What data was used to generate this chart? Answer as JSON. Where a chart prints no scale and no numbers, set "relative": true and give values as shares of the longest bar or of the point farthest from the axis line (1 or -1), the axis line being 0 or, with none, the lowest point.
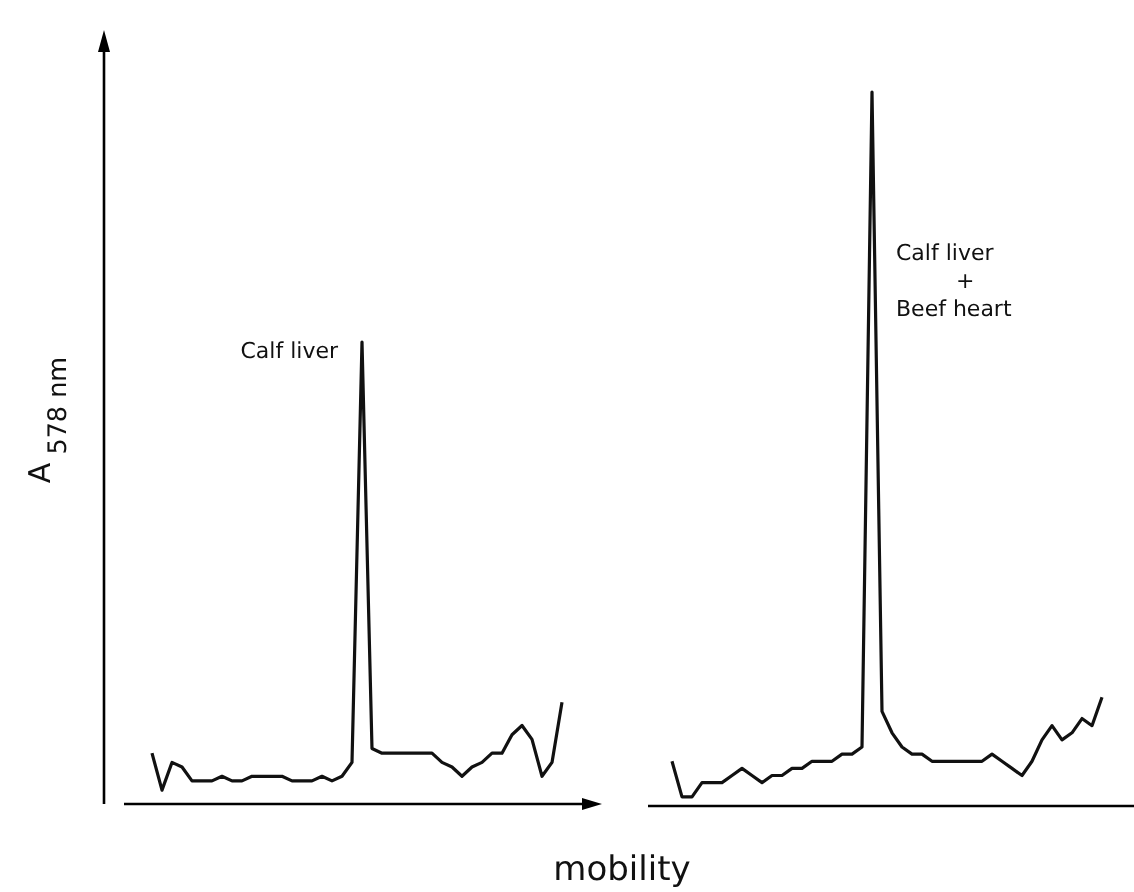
{
  "chart_data": [
    {
      "type": "line",
      "relative": true,
      "xlabel": "mobility",
      "ylabel": "A$_{578 nm}$",
      "line_style": "solid",
      "categories": [
        null,
        null,
        null,
        null,
        null,
        null,
        null,
        null,
        null,
        null,
        null,
        null,
        null,
        null,
        null,
        null,
        null,
        null,
        null,
        null,
        null,
        null,
        null,
        null,
        null,
        null,
        null,
        null,
        null,
        null,
        null,
        null,
        null,
        null,
        null,
        null,
        null,
        null,
        null,
        null,
        null,
        null
      ],
      "series": [
        {
          "name": "Calf liver",
          "color": "#111111",
          "values": [
            0.11,
            0.03,
            0.09,
            0.08,
            0.05,
            0.05,
            0.05,
            0.06,
            0.05,
            0.05,
            0.06,
            0.06,
            0.06,
            0.06,
            0.05,
            0.05,
            0.05,
            0.06,
            0.05,
            0.06,
            0.09,
            1,
            0.12,
            0.11,
            0.11,
            0.11,
            0.11,
            0.11,
            0.11,
            0.09,
            0.08,
            0.06,
            0.08,
            0.09,
            0.11,
            0.11,
            0.15,
            0.17,
            0.14,
            0.06,
            0.09,
            0.22
          ]
        }
      ]
    },
    {
      "type": "line",
      "relative": true,
      "line_style": "solid",
      "categories": [
        null,
        null,
        null,
        null,
        null,
        null,
        null,
        null,
        null,
        null,
        null,
        null,
        null,
        null,
        null,
        null,
        null,
        null,
        null,
        null,
        null,
        null,
        null,
        null,
        null,
        null,
        null,
        null,
        null,
        null,
        null,
        null,
        null,
        null,
        null,
        null,
        null,
        null,
        null,
        null,
        null,
        null,
        null,
        null
      ],
      "series": [
        {
          "name": "Calf liver\n+\nBeef heart",
          "color": "#111111",
          "values": [
            0.06,
            0.01,
            0.01,
            0.03,
            0.03,
            0.03,
            0.04,
            0.05,
            0.04,
            0.03,
            0.04,
            0.04,
            0.05,
            0.05,
            0.06,
            0.06,
            0.06,
            0.07,
            0.07,
            0.08,
            1,
            0.13,
            0.1,
            0.08,
            0.07,
            0.07,
            0.06,
            0.06,
            0.06,
            0.06,
            0.06,
            0.06,
            0.07,
            0.06,
            0.05,
            0.04,
            0.06,
            0.09,
            0.11,
            0.09,
            0.1,
            0.12,
            0.11,
            0.15
          ]
        }
      ]
    }
  ]
}
